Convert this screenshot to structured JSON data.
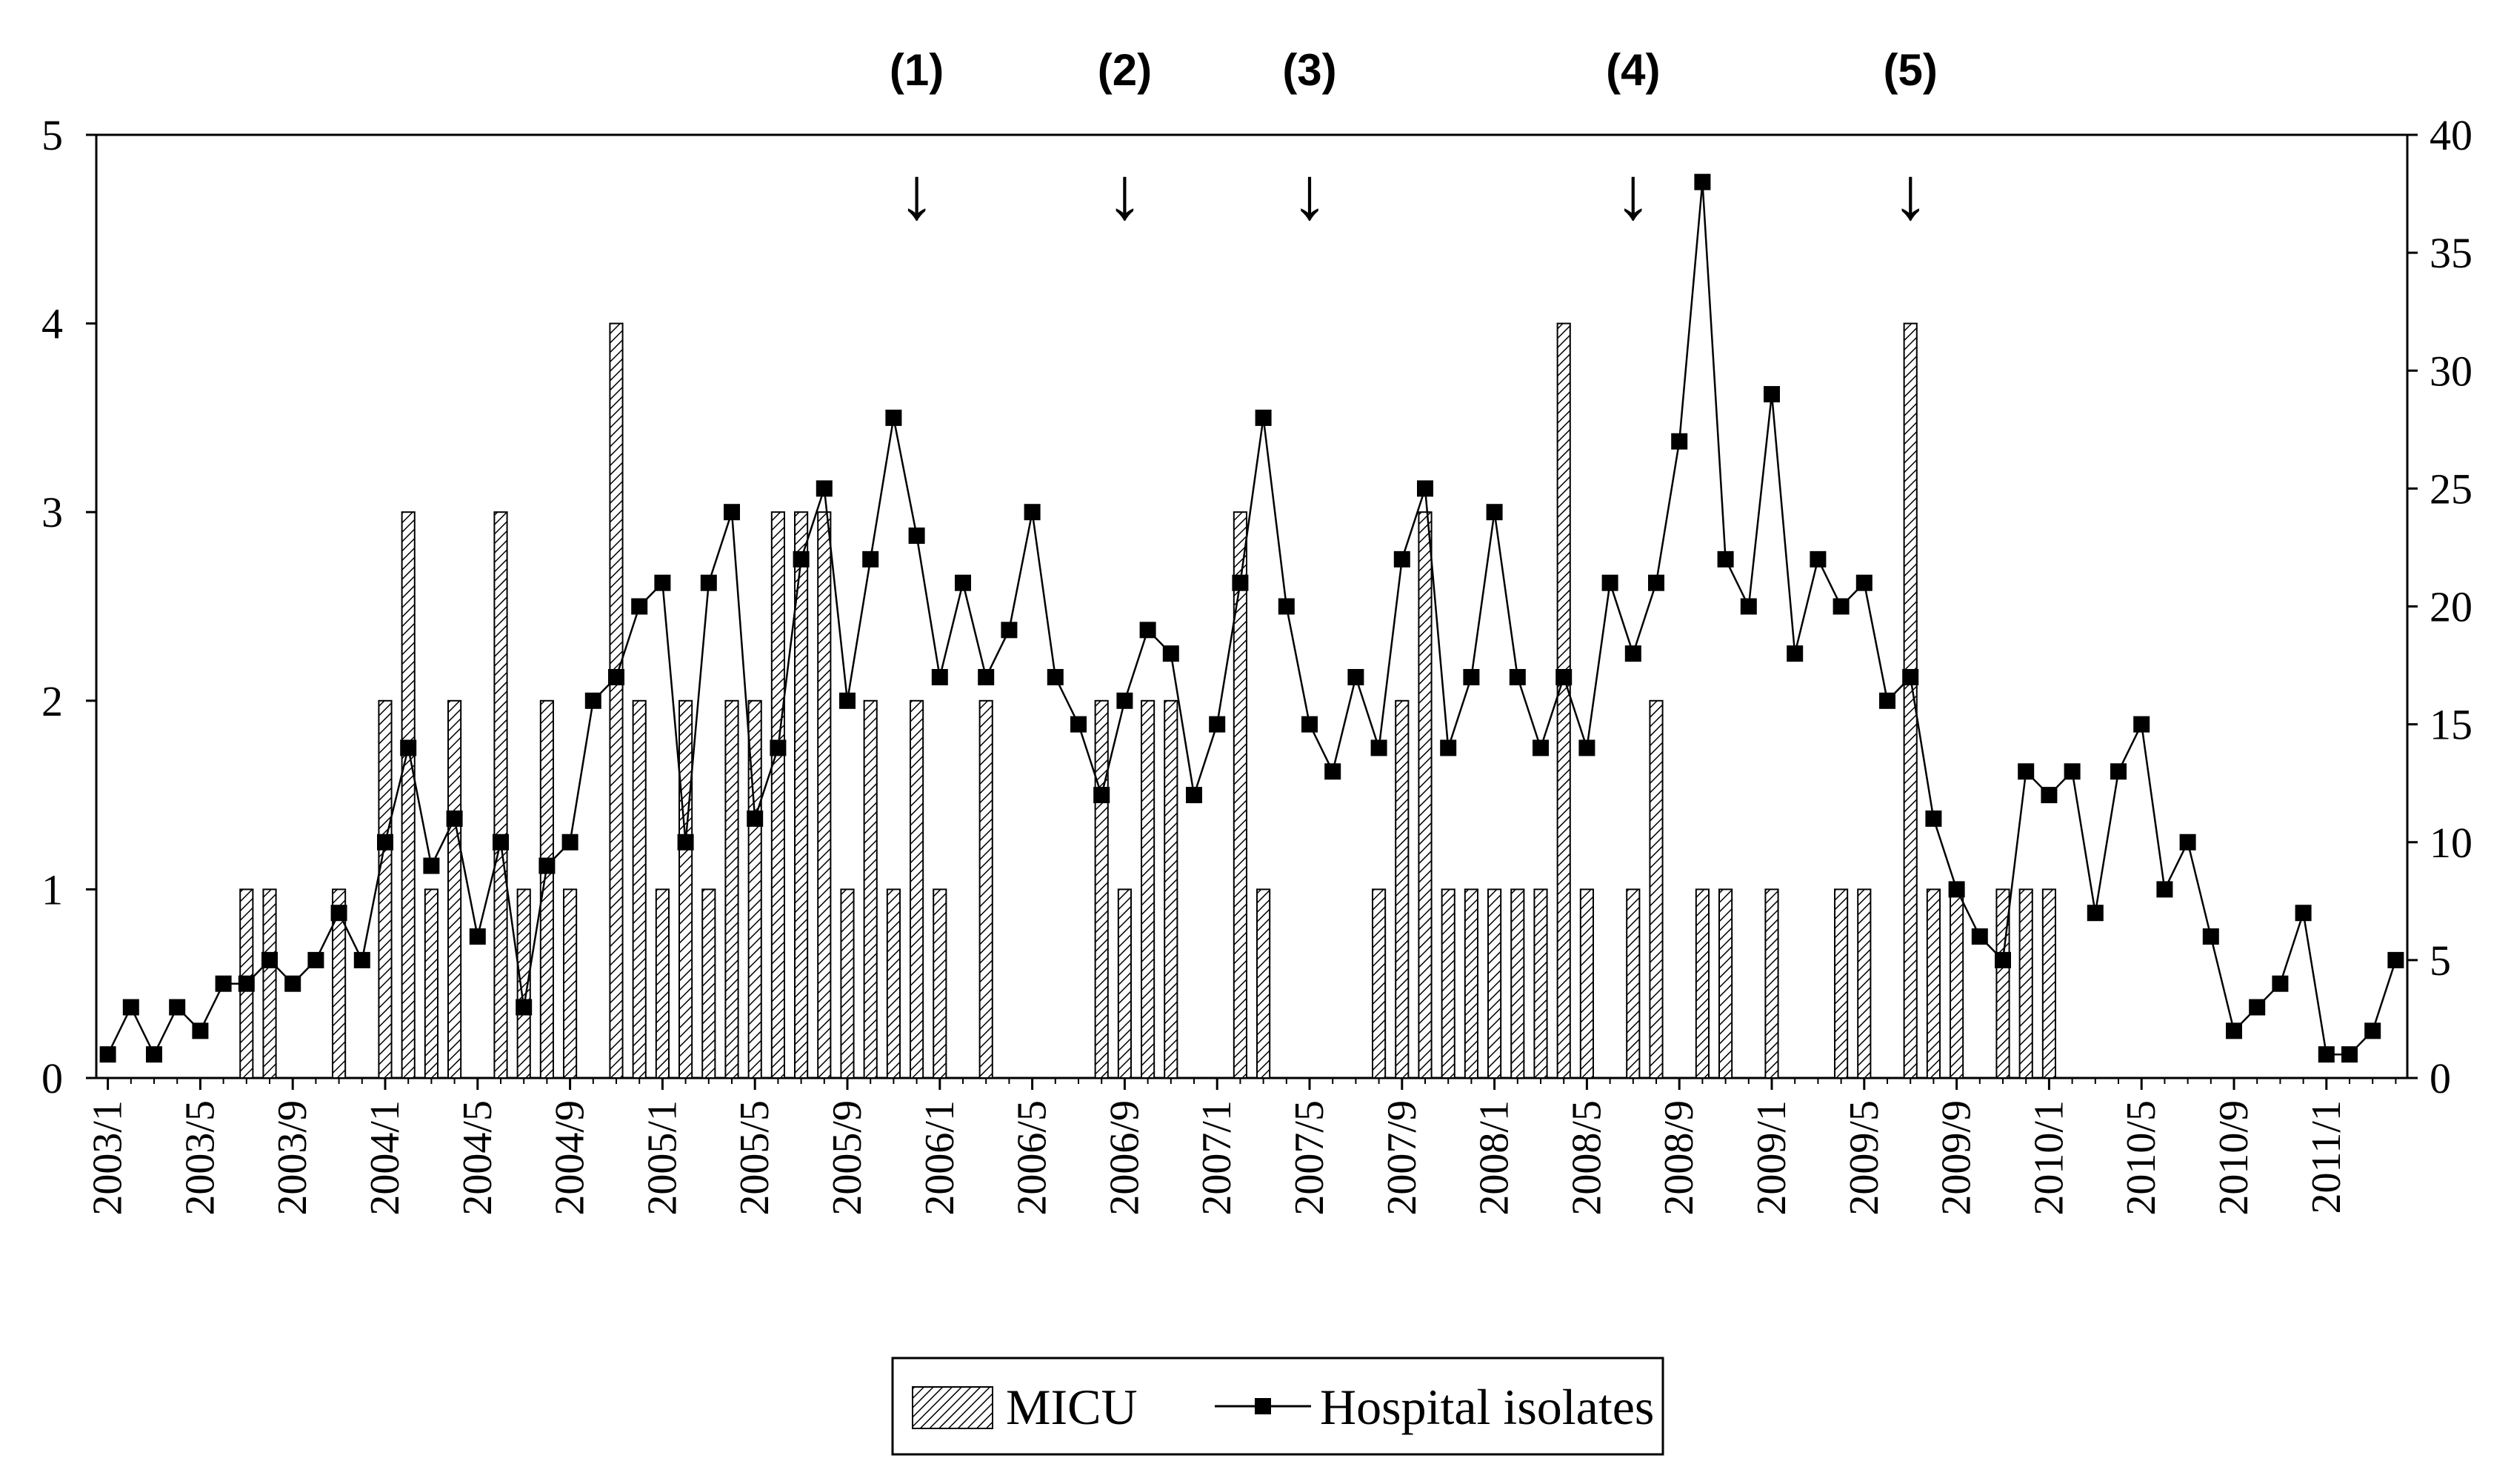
{
  "chart_data": {
    "type": "bar+line",
    "title": "",
    "categories": [
      "2003/1",
      "2003/2",
      "2003/3",
      "2003/4",
      "2003/5",
      "2003/6",
      "2003/7",
      "2003/8",
      "2003/9",
      "2003/10",
      "2003/11",
      "2003/12",
      "2004/1",
      "2004/2",
      "2004/3",
      "2004/4",
      "2004/5",
      "2004/6",
      "2004/7",
      "2004/8",
      "2004/9",
      "2004/10",
      "2004/11",
      "2004/12",
      "2005/1",
      "2005/2",
      "2005/3",
      "2005/4",
      "2005/5",
      "2005/6",
      "2005/7",
      "2005/8",
      "2005/9",
      "2005/10",
      "2005/11",
      "2005/12",
      "2006/1",
      "2006/2",
      "2006/3",
      "2006/4",
      "2006/5",
      "2006/6",
      "2006/7",
      "2006/8",
      "2006/9",
      "2006/10",
      "2006/11",
      "2006/12",
      "2007/1",
      "2007/2",
      "2007/3",
      "2007/4",
      "2007/5",
      "2007/6",
      "2007/7",
      "2007/8",
      "2007/9",
      "2007/10",
      "2007/11",
      "2007/12",
      "2008/1",
      "2008/2",
      "2008/3",
      "2008/4",
      "2008/5",
      "2008/6",
      "2008/7",
      "2008/8",
      "2008/9",
      "2008/10",
      "2008/11",
      "2008/12",
      "2009/1",
      "2009/2",
      "2009/3",
      "2009/4",
      "2009/5",
      "2009/6",
      "2009/7",
      "2009/8",
      "2009/9",
      "2009/10",
      "2009/11",
      "2009/12",
      "2010/1",
      "2010/2",
      "2010/3",
      "2010/4",
      "2010/5",
      "2010/6",
      "2010/7",
      "2010/8",
      "2010/9",
      "2010/10",
      "2010/11",
      "2010/12",
      "2011/1",
      "2011/2",
      "2011/3",
      "2011/4"
    ],
    "x_tick_labels": [
      "2003/1",
      "2003/5",
      "2003/9",
      "2004/1",
      "2004/5",
      "2004/9",
      "2005/1",
      "2005/5",
      "2005/9",
      "2006/1",
      "2006/5",
      "2006/9",
      "2007/1",
      "2007/5",
      "2007/9",
      "2008/1",
      "2008/5",
      "2008/9",
      "2009/1",
      "2009/5",
      "2009/9",
      "2010/1",
      "2010/5",
      "2010/9",
      "2011/1"
    ],
    "series": [
      {
        "name": "MICU",
        "kind": "bar",
        "axis": "left",
        "values": [
          0,
          0,
          0,
          0,
          0,
          0,
          1,
          1,
          0,
          0,
          1,
          0,
          2,
          3,
          1,
          2,
          0,
          3,
          1,
          2,
          1,
          0,
          4,
          2,
          1,
          2,
          1,
          2,
          2,
          3,
          3,
          3,
          1,
          2,
          1,
          2,
          1,
          0,
          2,
          0,
          0,
          0,
          0,
          2,
          1,
          2,
          2,
          0,
          0,
          3,
          1,
          0,
          0,
          0,
          0,
          1,
          2,
          3,
          1,
          1,
          1,
          1,
          1,
          4,
          1,
          0,
          1,
          2,
          0,
          1,
          1,
          0,
          1,
          0,
          0,
          1,
          1,
          0,
          4,
          1,
          1,
          0,
          1,
          1,
          1,
          0,
          0,
          0,
          0,
          0,
          0,
          0,
          0,
          0,
          0,
          0,
          0,
          0,
          0,
          0
        ]
      },
      {
        "name": "Hospital isolates",
        "kind": "line",
        "axis": "right",
        "values": [
          1,
          3,
          1,
          3,
          2,
          4,
          4,
          5,
          4,
          5,
          7,
          5,
          10,
          14,
          9,
          11,
          6,
          10,
          3,
          9,
          10,
          16,
          17,
          20,
          21,
          10,
          21,
          24,
          11,
          14,
          22,
          25,
          16,
          22,
          28,
          23,
          17,
          21,
          17,
          19,
          24,
          17,
          15,
          12,
          16,
          19,
          18,
          12,
          15,
          21,
          28,
          20,
          15,
          13,
          17,
          14,
          22,
          25,
          14,
          17,
          24,
          17,
          14,
          17,
          14,
          21,
          18,
          21,
          27,
          38,
          22,
          20,
          29,
          18,
          22,
          20,
          21,
          16,
          17,
          11,
          8,
          6,
          5,
          13,
          12,
          13,
          7,
          13,
          15,
          8,
          10,
          6,
          2,
          3,
          4,
          7,
          1,
          1,
          2,
          5
        ]
      }
    ],
    "y_left": {
      "ylim": [
        0,
        5
      ],
      "ticks": [
        0,
        1,
        2,
        3,
        4,
        5
      ]
    },
    "y_right": {
      "ylim": [
        0,
        40
      ],
      "ticks": [
        0,
        5,
        10,
        15,
        20,
        25,
        30,
        35,
        40
      ]
    },
    "annotations": [
      {
        "label": "(1)",
        "category": "2005/12",
        "arrow": "↓"
      },
      {
        "label": "(2)",
        "category": "2006/9",
        "arrow": "↓"
      },
      {
        "label": "(3)",
        "category": "2007/5",
        "arrow": "↓"
      },
      {
        "label": "(4)",
        "category": "2008/7",
        "arrow": "↓"
      },
      {
        "label": "(5)",
        "category": "2009/7",
        "arrow": "↓"
      }
    ],
    "legend": {
      "placement": "bottom-center",
      "entries": [
        "MICU",
        "Hospital isolates"
      ]
    },
    "grid": false
  }
}
